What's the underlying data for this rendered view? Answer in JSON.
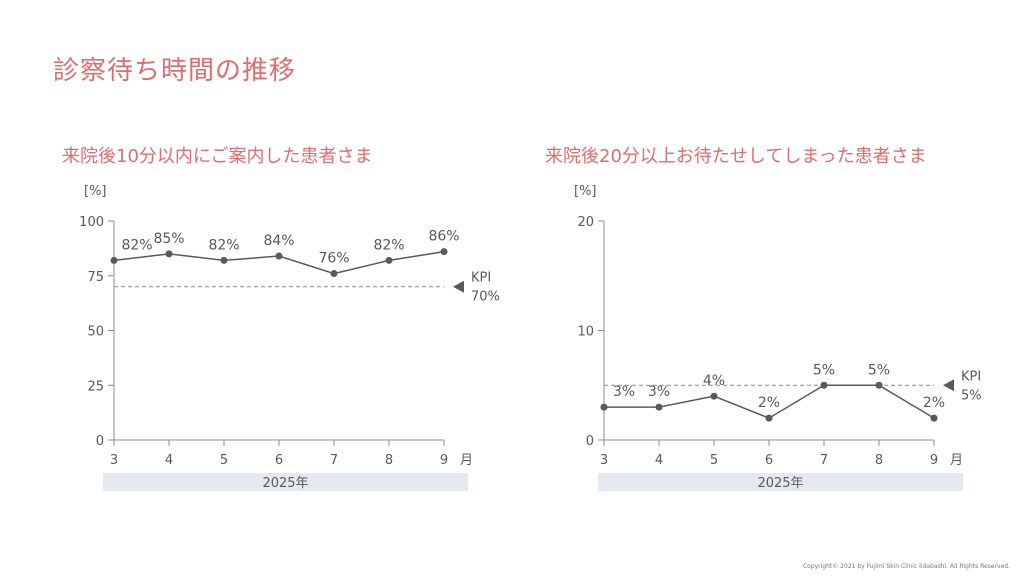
{
  "page": {
    "title": "診察待ち時間の推移",
    "copyright": "Copyright© 2021 by Fujimi Skin Clinic Iidabashi. All Rights Reserved."
  },
  "colors": {
    "title": "#e06c6c",
    "line": "#595959",
    "axis": "#8c8c8c",
    "band": "#e4e9f0",
    "text": "#595959"
  },
  "chart_data": [
    {
      "type": "line",
      "title": "来院後10分以内にご案内した患者さま",
      "yunit_label": "[%]",
      "x_unit_label": "月",
      "x_group_label": "2025年",
      "x": [
        "3",
        "4",
        "5",
        "6",
        "7",
        "8",
        "9"
      ],
      "values": [
        82,
        85,
        82,
        84,
        76,
        82,
        86
      ],
      "data_labels": [
        "82%",
        "85%",
        "82%",
        "84%",
        "76%",
        "82%",
        "86%"
      ],
      "ylim": [
        0,
        100
      ],
      "yticks": [
        0,
        25,
        50,
        75,
        100
      ],
      "kpi": {
        "value": 70,
        "label": "KPI",
        "value_label": "70%"
      },
      "grid": false
    },
    {
      "type": "line",
      "title": "来院後20分以上お待たせしてしまった患者さま",
      "yunit_label": "[%]",
      "x_unit_label": "月",
      "x_group_label": "2025年",
      "x": [
        "3",
        "4",
        "5",
        "6",
        "7",
        "8",
        "9"
      ],
      "values": [
        3,
        3,
        4,
        2,
        5,
        5,
        2
      ],
      "data_labels": [
        "3%",
        "3%",
        "4%",
        "2%",
        "5%",
        "5%",
        "2%"
      ],
      "ylim": [
        0,
        20
      ],
      "yticks": [
        0,
        10,
        20
      ],
      "kpi": {
        "value": 5,
        "label": "KPI",
        "value_label": "5%"
      },
      "grid": false
    }
  ]
}
